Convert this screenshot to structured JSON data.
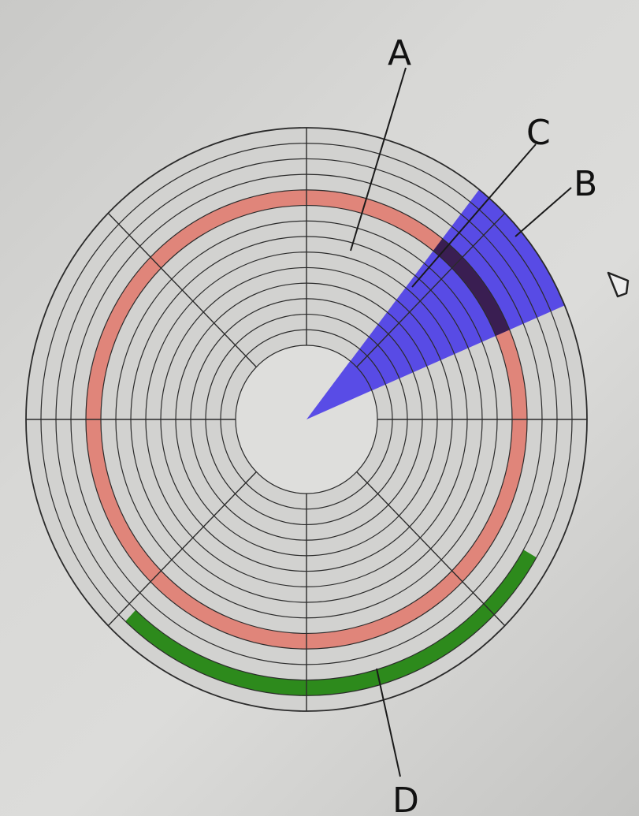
{
  "labels": {
    "a": "A",
    "b": "B",
    "c": "C",
    "d": "D"
  },
  "disk": {
    "track_count": 14,
    "sector_count": 8,
    "colors": {
      "platter": "#d2d2d0",
      "lines": "#2b2b2b",
      "track_highlight": "#e0857a",
      "sector_highlight": "#4d3fe6",
      "overlap": "#3a1e52",
      "cluster_highlight": "#2d8a1c"
    }
  },
  "icons": [
    "cursor-pointer-icon"
  ]
}
